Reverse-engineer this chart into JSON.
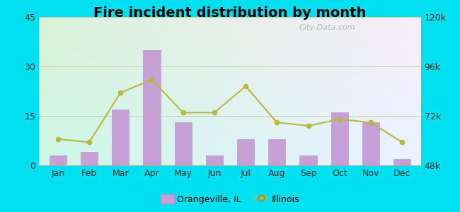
{
  "title": "Fire incident distribution by month",
  "months": [
    "Jan",
    "Feb",
    "Mar",
    "Apr",
    "May",
    "Jun",
    "Jul",
    "Aug",
    "Sep",
    "Oct",
    "Nov",
    "Dec"
  ],
  "bar_values": [
    3,
    4,
    17,
    35,
    13,
    3,
    8,
    8,
    3,
    16,
    13,
    2
  ],
  "line_values_left": [
    8,
    7,
    22,
    26,
    16,
    16,
    24,
    13,
    12,
    14,
    13,
    7
  ],
  "bar_color": "#c8a0d8",
  "bar_edgecolor": "#b898c8",
  "line_color": "#b8b840",
  "line_marker": "o",
  "ylim_left": [
    0,
    45
  ],
  "ylim_right": [
    48000,
    120000
  ],
  "yticks_left": [
    0,
    15,
    30,
    45
  ],
  "yticks_right": [
    48000,
    72000,
    96000,
    120000
  ],
  "ytick_labels_right": [
    "48k",
    "72k",
    "96k",
    "120k"
  ],
  "background_outer": "#00e0f0",
  "grid_color": "#ccccaa",
  "title_fontsize": 14,
  "legend_label_bar": "Orangeville, IL",
  "legend_label_line": "Illinois",
  "watermark": "City-Data.com"
}
